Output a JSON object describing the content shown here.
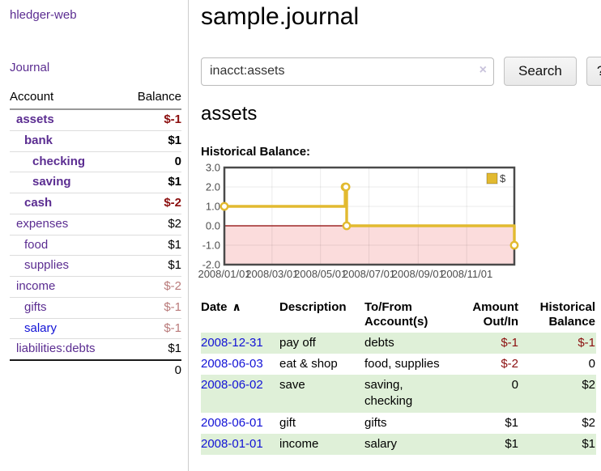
{
  "app": {
    "title": "hledger-web"
  },
  "theme": {
    "link_purple": "#5b2d91",
    "link_blue": "#1212d6",
    "negative_strong": "#8b0e0e",
    "negative_muted": "#b97a7a",
    "row_stripe_green": "#dff0d8",
    "chart_series_gold": "#e2ba30",
    "chart_negative_bg": "#fbdcdc",
    "chart_zero_line": "#8b0000"
  },
  "sidebar": {
    "journal_link": "Journal",
    "accounts_table": {
      "headers": {
        "account": "Account",
        "balance": "Balance"
      },
      "rows": [
        {
          "name": "assets",
          "depth": 1,
          "bold": true,
          "balance": "$-1",
          "balance_style": "neg-strong"
        },
        {
          "name": "bank",
          "depth": 2,
          "bold": true,
          "balance": "$1",
          "balance_style": "pos"
        },
        {
          "name": "checking",
          "depth": 3,
          "bold": true,
          "balance": "0",
          "balance_style": "pos"
        },
        {
          "name": "saving",
          "depth": 3,
          "bold": true,
          "balance": "$1",
          "balance_style": "pos"
        },
        {
          "name": "cash",
          "depth": 2,
          "bold": true,
          "balance": "$-2",
          "balance_style": "neg-strong"
        },
        {
          "name": "expenses",
          "depth": 1,
          "bold": false,
          "balance": "$2",
          "balance_style": "pos"
        },
        {
          "name": "food",
          "depth": 2,
          "bold": false,
          "balance": "$1",
          "balance_style": "pos"
        },
        {
          "name": "supplies",
          "depth": 2,
          "bold": false,
          "balance": "$1",
          "balance_style": "pos"
        },
        {
          "name": "income",
          "depth": 1,
          "bold": false,
          "balance": "$-2",
          "balance_style": "neg-muted"
        },
        {
          "name": "gifts",
          "depth": 2,
          "bold": false,
          "balance": "$-1",
          "balance_style": "neg-muted"
        },
        {
          "name": "salary",
          "depth": 2,
          "bold": false,
          "balance": "$-1",
          "balance_style": "neg-muted",
          "link_state": "unvisited"
        },
        {
          "name": "liabilities:debts",
          "depth": 1,
          "bold": false,
          "balance": "$1",
          "balance_style": "pos"
        }
      ],
      "total": "0"
    }
  },
  "header": {
    "title": "sample.journal"
  },
  "search": {
    "value": "inacct:assets",
    "clear_icon": "×",
    "button": "Search",
    "help_button": "?"
  },
  "main": {
    "account_heading": "assets",
    "chart_label": "Historical Balance:"
  },
  "chart_data": {
    "type": "line",
    "mode": "steps",
    "title": "Historical Balance",
    "series": [
      {
        "name": "$",
        "points": [
          [
            "2008-01-01",
            1
          ],
          [
            "2008-06-01",
            2
          ],
          [
            "2008-06-02",
            2
          ],
          [
            "2008-06-03",
            0
          ],
          [
            "2008-12-31",
            -1
          ]
        ]
      }
    ],
    "x_range": [
      "2008-01-01",
      "2008-12-31"
    ],
    "x_ticks": [
      "2008/01/01",
      "2008/03/01",
      "2008/05/01",
      "2008/07/01",
      "2008/09/01",
      "2008/11/01"
    ],
    "y_ticks": [
      "3.0",
      "2.0",
      "1.0",
      "0.0",
      "-1.0",
      "-2.0"
    ],
    "ylim": [
      -2,
      3
    ],
    "grid": true,
    "legend_position": "top-right",
    "legend_label": "$",
    "negative_region_shaded": true
  },
  "register": {
    "headers": [
      {
        "lines": [
          "Date"
        ],
        "sort_indicator": "∧",
        "align": "left"
      },
      {
        "lines": [
          "Description"
        ],
        "align": "left"
      },
      {
        "lines": [
          "To/From",
          "Account(s)"
        ],
        "align": "left"
      },
      {
        "lines": [
          "Amount",
          "Out/In"
        ],
        "align": "right"
      },
      {
        "lines": [
          "Historical",
          "Balance"
        ],
        "align": "right"
      }
    ],
    "rows": [
      {
        "date": "2008-12-31",
        "description": "pay off",
        "accounts": "debts",
        "amount": "$-1",
        "amount_negative": true,
        "balance": "$-1",
        "balance_negative": true,
        "striped": true
      },
      {
        "date": "2008-06-03",
        "description": "eat & shop",
        "accounts": "food, supplies",
        "amount": "$-2",
        "amount_negative": true,
        "balance": "0",
        "balance_negative": false,
        "striped": false
      },
      {
        "date": "2008-06-02",
        "description": "save",
        "accounts": "saving, checking",
        "amount": "0",
        "amount_negative": false,
        "balance": "$2",
        "balance_negative": false,
        "striped": true
      },
      {
        "date": "2008-06-01",
        "description": "gift",
        "accounts": "gifts",
        "amount": "$1",
        "amount_negative": false,
        "balance": "$2",
        "balance_negative": false,
        "striped": false
      },
      {
        "date": "2008-01-01",
        "description": "income",
        "accounts": "salary",
        "amount": "$1",
        "amount_negative": false,
        "balance": "$1",
        "balance_negative": false,
        "striped": true
      }
    ]
  }
}
